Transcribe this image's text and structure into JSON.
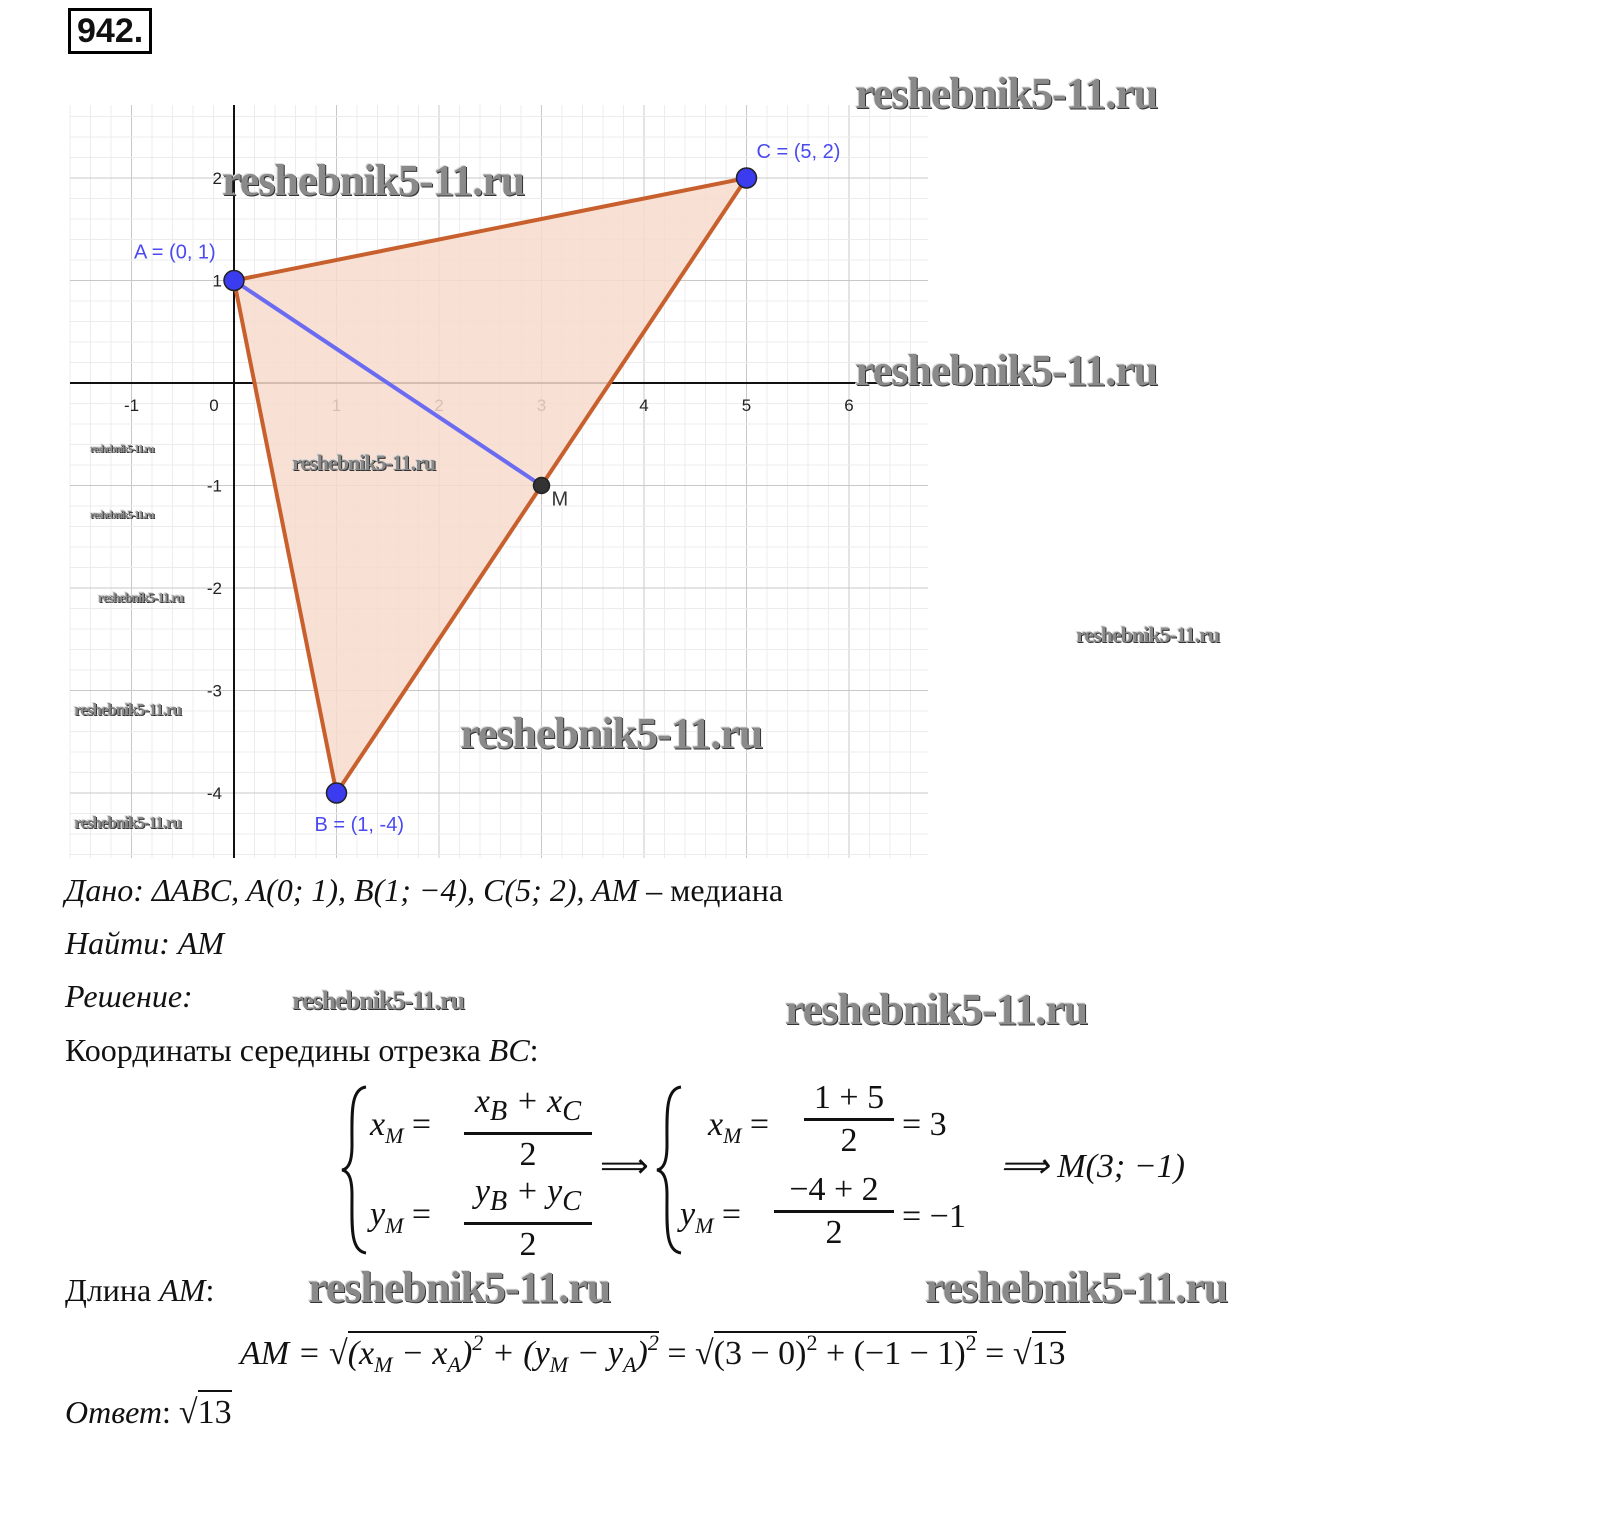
{
  "problem_number": "942.",
  "watermark": "reshebnik5-11.ru",
  "graph": {
    "x_ticks": [
      "-1",
      "0",
      "1",
      "2",
      "3",
      "4",
      "5",
      "6"
    ],
    "y_ticks": [
      "2",
      "1",
      "-1",
      "-2",
      "-3",
      "-4"
    ],
    "points": [
      {
        "name": "A",
        "x": 0,
        "y": 1,
        "label": "A = (0, 1)",
        "color": "#3b3bf0"
      },
      {
        "name": "B",
        "x": 1,
        "y": -4,
        "label": "B = (1, -4)",
        "color": "#3b3bf0"
      },
      {
        "name": "C",
        "x": 5,
        "y": 2,
        "label": "C = (5, 2)",
        "color": "#3b3bf0"
      },
      {
        "name": "M",
        "x": 3,
        "y": -1,
        "label": "M",
        "color": "#333333"
      }
    ],
    "triangle_color": "#c8602e",
    "triangle_fill": "#f7dccd",
    "median_color": "#6b6bf2"
  },
  "given": {
    "label": "Дано",
    "text": ": ΔABC, A(0; 1), B(1; −4), C(5; 2), AM",
    "suffix": " – медиана"
  },
  "find": {
    "label": "Найти",
    "text": ": AM"
  },
  "solution": {
    "label": "Решение",
    "colon": ":"
  },
  "midpoint_heading": {
    "text": "Координаты середины отрезка ",
    "var": "BC",
    "colon": ":"
  },
  "system": {
    "xm": "x",
    "sub_m": "M",
    "eq": "=",
    "xnum": "x_B + x_C",
    "ynum": "y_B + y_C",
    "den": "2",
    "implies": "⟹",
    "xnum2": "1 + 5",
    "ynum2": "−4 + 2",
    "xres": "= 3",
    "yres": "= −1",
    "result": "⟹ M(3; −1)"
  },
  "length_heading": {
    "text": "Длина ",
    "var": "AM",
    "colon": ":"
  },
  "am_formula": {
    "lhs": "AM =",
    "rad1": "(x_M − x_A)² + (y_M − y_A)²",
    "eq": "=",
    "rad2": "(3 − 0)² + (−1 − 1)²",
    "eq2": "=",
    "result": "13"
  },
  "answer": {
    "label": "Ответ",
    "colon": ":",
    "value": "13"
  }
}
